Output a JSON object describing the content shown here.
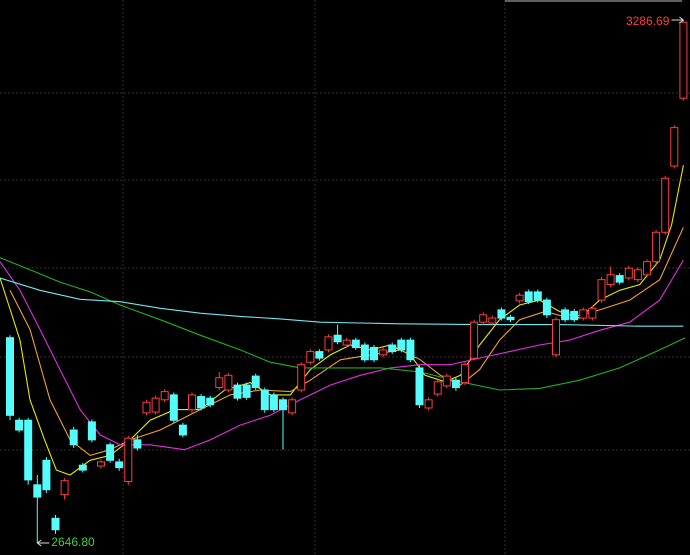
{
  "chart_data": {
    "type": "candlestick",
    "open": [
      2898,
      2797,
      2797,
      2718,
      2748,
      2677,
      2706,
      2785,
      2742,
      2795,
      2741,
      2767,
      2746,
      2722,
      2773,
      2806,
      2807,
      2822,
      2828,
      2791,
      2810,
      2826,
      2824,
      2837,
      2834,
      2840,
      2840,
      2851,
      2834,
      2828,
      2822,
      2806,
      2834,
      2868,
      2881,
      2883,
      2901,
      2889,
      2895,
      2889,
      2886,
      2877,
      2889,
      2895,
      2895,
      2861,
      2812,
      2829,
      2839,
      2846,
      2843,
      2873,
      2917,
      2916,
      2932,
      2923,
      2943,
      2954,
      2954,
      2944,
      2877,
      2932,
      2930,
      2922,
      2922,
      2944,
      2963,
      2974,
      2971,
      2969,
      2975,
      2991,
      3027,
      3108,
      3191
    ],
    "close": [
      2803,
      2785,
      2724,
      2703,
      2712,
      2663,
      2723,
      2767,
      2736,
      2773,
      2746,
      2748,
      2739,
      2775,
      2763,
      2819,
      2824,
      2832,
      2797,
      2779,
      2828,
      2812,
      2816,
      2849,
      2852,
      2824,
      2825,
      2837,
      2810,
      2810,
      2810,
      2822,
      2865,
      2881,
      2873,
      2899,
      2893,
      2895,
      2886,
      2871,
      2871,
      2883,
      2881,
      2883,
      2871,
      2816,
      2822,
      2844,
      2851,
      2837,
      2865,
      2917,
      2926,
      2922,
      2922,
      2920,
      2950,
      2942,
      2944,
      2926,
      2920,
      2920,
      2920,
      2932,
      2934,
      2969,
      2975,
      2966,
      2983,
      2981,
      2991,
      3027,
      3093,
      3155,
      3284
    ],
    "low": [
      2797,
      2782,
      2718,
      2646.8,
      2708,
      2658,
      2700,
      2763,
      2733,
      2770,
      2738,
      2745,
      2735,
      2718,
      2760,
      2803,
      2804,
      2819,
      2794,
      2776,
      2806,
      2809,
      2813,
      2834,
      2831,
      2821,
      2822,
      2834,
      2806,
      2807,
      2761,
      2803,
      2831,
      2865,
      2870,
      2880,
      2890,
      2886,
      2883,
      2868,
      2868,
      2874,
      2878,
      2880,
      2868,
      2812,
      2809,
      2826,
      2836,
      2833,
      2840,
      2870,
      2914,
      2913,
      2919,
      2917,
      2940,
      2939,
      2941,
      2922,
      2874,
      2917,
      2917,
      2919,
      2919,
      2941,
      2960,
      2963,
      2968,
      2966,
      2972,
      2988,
      3024,
      3105,
      3188
    ],
    "high": [
      2901,
      2800,
      2800,
      2730,
      2752,
      2681,
      2726,
      2789,
      2745,
      2798,
      2749,
      2770,
      2750,
      2778,
      2779,
      2822,
      2827,
      2835,
      2831,
      2794,
      2831,
      2829,
      2827,
      2856,
      2855,
      2843,
      2843,
      2854,
      2837,
      2831,
      2825,
      2825,
      2868,
      2884,
      2884,
      2902,
      2914,
      2898,
      2898,
      2892,
      2889,
      2886,
      2892,
      2898,
      2898,
      2864,
      2825,
      2847,
      2854,
      2849,
      2868,
      2920,
      2929,
      2925,
      2935,
      2926,
      2953,
      2957,
      2957,
      2947,
      2923,
      2935,
      2933,
      2935,
      2937,
      2972,
      2985,
      2977,
      2986,
      2984,
      2994,
      3030,
      3096,
      3158,
      3286.69
    ],
    "up_color": "#ff3c3c",
    "down_color": "#54fcfc",
    "up_hollow": true,
    "high_label": "3286.69",
    "low_label": "2646.80",
    "series": [
      {
        "color": "#e8e800",
        "x": [
          -1.1,
          1.1,
          2.2,
          3.8,
          5.1,
          6.6,
          8.8,
          11,
          13.2,
          15.4,
          18.1,
          20.9,
          23.6,
          26.4,
          28.6,
          30.8,
          33,
          35.2,
          37.4,
          39.6,
          41.8,
          44,
          45.6,
          47.8,
          49.5,
          51.6,
          53.8,
          56,
          58.2,
          60.4,
          62.6,
          64.8,
          67,
          69.2,
          71.4,
          72.7,
          74
        ],
        "values": [
          2971,
          2895,
          2822,
          2773,
          2736,
          2730,
          2748,
          2754,
          2773,
          2797,
          2810,
          2810,
          2834,
          2843,
          2828,
          2828,
          2859,
          2877,
          2889,
          2883,
          2889,
          2877,
          2852,
          2844,
          2852,
          2889,
          2920,
          2938,
          2944,
          2930,
          2922,
          2944,
          2956,
          2963,
          2993,
          3036,
          3109
        ]
      },
      {
        "color": "#f0a030",
        "x": [
          0,
          2.2,
          4.4,
          6.6,
          8.8,
          11,
          13.2,
          16.5,
          20.9,
          24.2,
          27.5,
          30.8,
          33,
          36.3,
          39.6,
          42.9,
          45.1,
          47.3,
          49.5,
          51.6,
          53.8,
          56,
          58.8,
          61.5,
          64.8,
          68.1,
          71.4,
          74
        ],
        "values": [
          2956,
          2908,
          2822,
          2773,
          2754,
          2761,
          2773,
          2785,
          2810,
          2828,
          2834,
          2832,
          2846,
          2871,
          2877,
          2883,
          2871,
          2852,
          2840,
          2859,
          2895,
          2920,
          2930,
          2922,
          2932,
          2944,
          2969,
          3033
        ]
      },
      {
        "color": "#e030e0",
        "x": [
          -1.1,
          1.1,
          3.3,
          5.5,
          7.7,
          9.9,
          12.1,
          15.4,
          19.2,
          22,
          25.3,
          28.6,
          31.9,
          35.2,
          38.5,
          41.8,
          45.1,
          48.4,
          51.6,
          54.9,
          58.2,
          61.5,
          64.8,
          68.1,
          71.4,
          74
        ],
        "values": [
          2991,
          2956,
          2908,
          2859,
          2810,
          2779,
          2767,
          2767,
          2761,
          2773,
          2791,
          2803,
          2822,
          2840,
          2852,
          2861,
          2865,
          2865,
          2873,
          2881,
          2889,
          2895,
          2907,
          2917,
          2944,
          2993
        ]
      },
      {
        "color": "#20b020",
        "x": [
          -1.1,
          2.2,
          5.5,
          8.8,
          12.1,
          16.5,
          20.9,
          25.3,
          28.6,
          31.9,
          36.3,
          40.7,
          45.1,
          49.5,
          53.8,
          58.2,
          62.6,
          67,
          71.4,
          74.2
        ],
        "values": [
          2996,
          2981,
          2966,
          2954,
          2938,
          2920,
          2901,
          2883,
          2868,
          2861,
          2861,
          2861,
          2856,
          2844,
          2834,
          2836,
          2846,
          2861,
          2883,
          2898
        ]
      },
      {
        "color": "#70e8f0",
        "x": [
          -1.1,
          3.3,
          7.7,
          12.1,
          16.5,
          20.9,
          25.3,
          29.7,
          34.1,
          38.5,
          42.9,
          51.6,
          60.4,
          69.2,
          74
        ],
        "values": [
          2971,
          2956,
          2945,
          2942,
          2934,
          2928,
          2924,
          2921,
          2917,
          2916,
          2915,
          2914,
          2914,
          2912,
          2912
        ]
      }
    ]
  }
}
